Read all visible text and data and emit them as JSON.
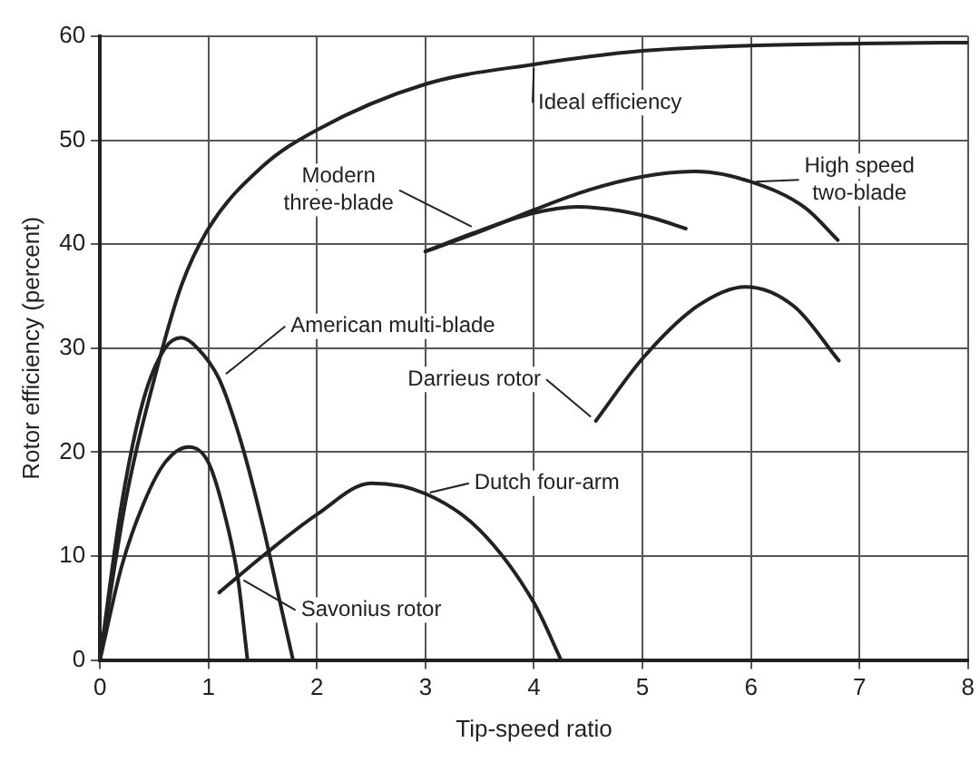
{
  "chart_data": {
    "type": "line",
    "xlabel": "Tip-speed ratio",
    "ylabel": "Rotor efficiency (percent)",
    "xlim": [
      0,
      8
    ],
    "ylim": [
      0,
      60
    ],
    "xticks": [
      0,
      1,
      2,
      3,
      4,
      5,
      6,
      7,
      8
    ],
    "yticks": [
      0,
      10,
      20,
      30,
      40,
      50,
      60
    ],
    "grid": true,
    "legend": "center",
    "marker": "none",
    "line_style": "solid",
    "series": [
      {
        "name": "Ideal efficiency",
        "color": "#222222",
        "x": [
          0,
          0.25,
          0.5,
          0.75,
          1,
          1.5,
          2,
          3,
          4,
          5,
          6,
          7,
          8
        ],
        "values": [
          0,
          16,
          27,
          36,
          41.5,
          47.5,
          51,
          55.4,
          57.3,
          58.6,
          59.1,
          59.3,
          59.4
        ]
      },
      {
        "name": "American multi-blade",
        "color": "#222222",
        "x": [
          0,
          0.2,
          0.4,
          0.6,
          0.75,
          0.9,
          1.1,
          1.3,
          1.5,
          1.65,
          1.78
        ],
        "values": [
          0,
          15,
          25,
          30,
          31,
          30,
          27,
          21,
          13,
          6,
          0
        ]
      },
      {
        "name": "Savonius rotor",
        "color": "#222222",
        "x": [
          0,
          0.2,
          0.4,
          0.6,
          0.82,
          1,
          1.15,
          1.27,
          1.36
        ],
        "values": [
          0,
          9,
          15,
          19,
          20.5,
          19,
          14,
          8,
          0
        ]
      },
      {
        "name": "Dutch four-arm",
        "color": "#222222",
        "x": [
          1.1,
          1.5,
          2,
          2.5,
          3,
          3.5,
          4,
          4.25
        ],
        "values": [
          6.5,
          10,
          14,
          17,
          16,
          12.5,
          5.5,
          0
        ]
      },
      {
        "name": "Modern\nthree-blade",
        "color": "#222222",
        "x": [
          3,
          3.5,
          4,
          4.4,
          4.8,
          5.1,
          5.4
        ],
        "values": [
          39.3,
          41.3,
          43,
          43.6,
          43.2,
          42.5,
          41.5
        ]
      },
      {
        "name": "High speed\ntwo-blade",
        "color": "#222222",
        "x": [
          3,
          3.5,
          4,
          4.5,
          5,
          5.5,
          6,
          6.5,
          6.8
        ],
        "values": [
          39.3,
          41.2,
          43.3,
          45.2,
          46.5,
          47,
          46,
          43.5,
          40.4
        ]
      },
      {
        "name": "Darrieus rotor",
        "color": "#222222",
        "x": [
          4.57,
          5,
          5.5,
          5.95,
          6.4,
          6.81
        ],
        "values": [
          23,
          29,
          34,
          35.9,
          34,
          28.8
        ]
      }
    ]
  }
}
